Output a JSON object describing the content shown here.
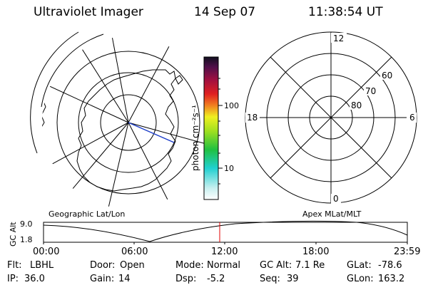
{
  "header": {
    "instrument": "Ultraviolet Imager",
    "date": "14 Sep 07",
    "time": "11:38:54 UT"
  },
  "geo_panel": {
    "label": "Geographic Lat/Lon"
  },
  "mag_panel": {
    "label": "Apex MLat/MLT",
    "mlt_labels": {
      "top": "12",
      "bottom": "0",
      "left": "18",
      "right": "6"
    },
    "lat_labels": [
      "60",
      "70",
      "80"
    ]
  },
  "colorbar": {
    "unit_label": "photon cm⁻²s⁻¹",
    "ticks": [
      "100",
      "10"
    ]
  },
  "gc_alt_plot": {
    "ylabel": "GC Alt",
    "yticks": [
      "9.0",
      "1.8"
    ],
    "xticks": [
      "00:00",
      "06:00",
      "12:00",
      "18:00",
      "23:59"
    ],
    "current_marker_color": "#e00000"
  },
  "info": {
    "row1": [
      {
        "key": "Flt:",
        "value": "LBHL"
      },
      {
        "key": "Door:",
        "value": "Open"
      },
      {
        "key": "Mode:",
        "value": "Normal"
      },
      {
        "key": "GC Alt:",
        "value": "7.1 Re"
      },
      {
        "key": "GLat:",
        "value": "-78.6"
      }
    ],
    "row2": [
      {
        "key": "IP:",
        "value": "36.0"
      },
      {
        "key": "Gain:",
        "value": "14"
      },
      {
        "key": "Dsp:",
        "value": "-5.2"
      },
      {
        "key": "Seq:",
        "value": "39"
      },
      {
        "key": "GLon:",
        "value": "163.2"
      }
    ]
  },
  "colors": {
    "line": "#000000",
    "track": "#1a3cc8",
    "marker": "#e00000"
  }
}
